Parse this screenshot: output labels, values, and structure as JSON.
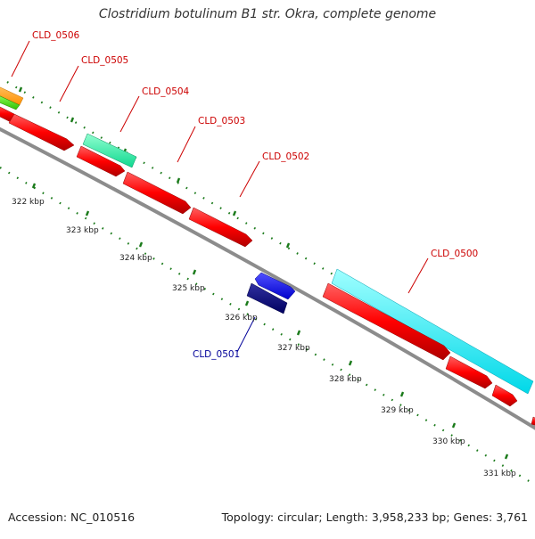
{
  "title": "Clostridium botulinum B1 str. Okra, complete genome",
  "footer": {
    "accession": "Accession: NC_010516",
    "summary": "Topology: circular; Length: 3,958,233 bp; Genes: 3,761"
  },
  "colors": {
    "backbone": "#8c8c8c",
    "ticks": "#1a7a1a",
    "label_red": "#cc0000",
    "label_blue": "#000099",
    "forward_gene": "#ff0000",
    "reverse_gene": "#0000ff",
    "reverse_gene_dark": "#000080"
  },
  "scale_labels": [
    "322 kbp",
    "323 kbp",
    "324 kbp",
    "325 kbp",
    "326 kbp",
    "327 kbp",
    "328 kbp",
    "329 kbp",
    "330 kbp",
    "331 kbp"
  ],
  "gene_labels": [
    {
      "name": "CLD_0506",
      "color": "red"
    },
    {
      "name": "CLD_0505",
      "color": "red"
    },
    {
      "name": "CLD_0504",
      "color": "red"
    },
    {
      "name": "CLD_0503",
      "color": "red"
    },
    {
      "name": "CLD_0502",
      "color": "red"
    },
    {
      "name": "CLD_0500",
      "color": "red"
    },
    {
      "name": "CLD_0501",
      "color": "blue"
    }
  ]
}
